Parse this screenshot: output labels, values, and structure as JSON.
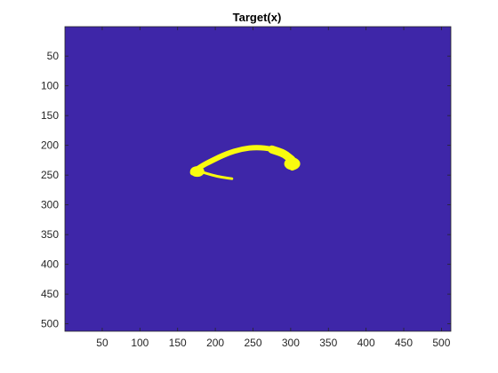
{
  "chart_data": {
    "type": "heatmap",
    "title": "Target(x)",
    "xlabel": "",
    "ylabel": "",
    "xlim": [
      0.5,
      512.5
    ],
    "ylim": [
      0.5,
      512.5
    ],
    "y_reversed": true,
    "x_ticks": [
      50,
      100,
      150,
      200,
      250,
      300,
      350,
      400,
      450,
      500
    ],
    "y_ticks": [
      50,
      100,
      150,
      200,
      250,
      300,
      350,
      400,
      450,
      500
    ],
    "grid": false,
    "colors": {
      "background_value_0": "#3e26a8",
      "foreground_value_1": "#f9fb0e",
      "axis": "#262626"
    },
    "values": [
      0,
      1
    ],
    "region_value_1": {
      "description_points_xy": [
        [
          170,
          246
        ],
        [
          180,
          236
        ],
        [
          195,
          226
        ],
        [
          215,
          214
        ],
        [
          235,
          206
        ],
        [
          255,
          203
        ],
        [
          275,
          206
        ],
        [
          292,
          213
        ],
        [
          305,
          224
        ],
        [
          306,
          236
        ],
        [
          302,
          238
        ]
      ],
      "tail_points_xy": [
        [
          180,
          244
        ],
        [
          195,
          250
        ],
        [
          210,
          254
        ],
        [
          222,
          256
        ]
      ]
    }
  }
}
